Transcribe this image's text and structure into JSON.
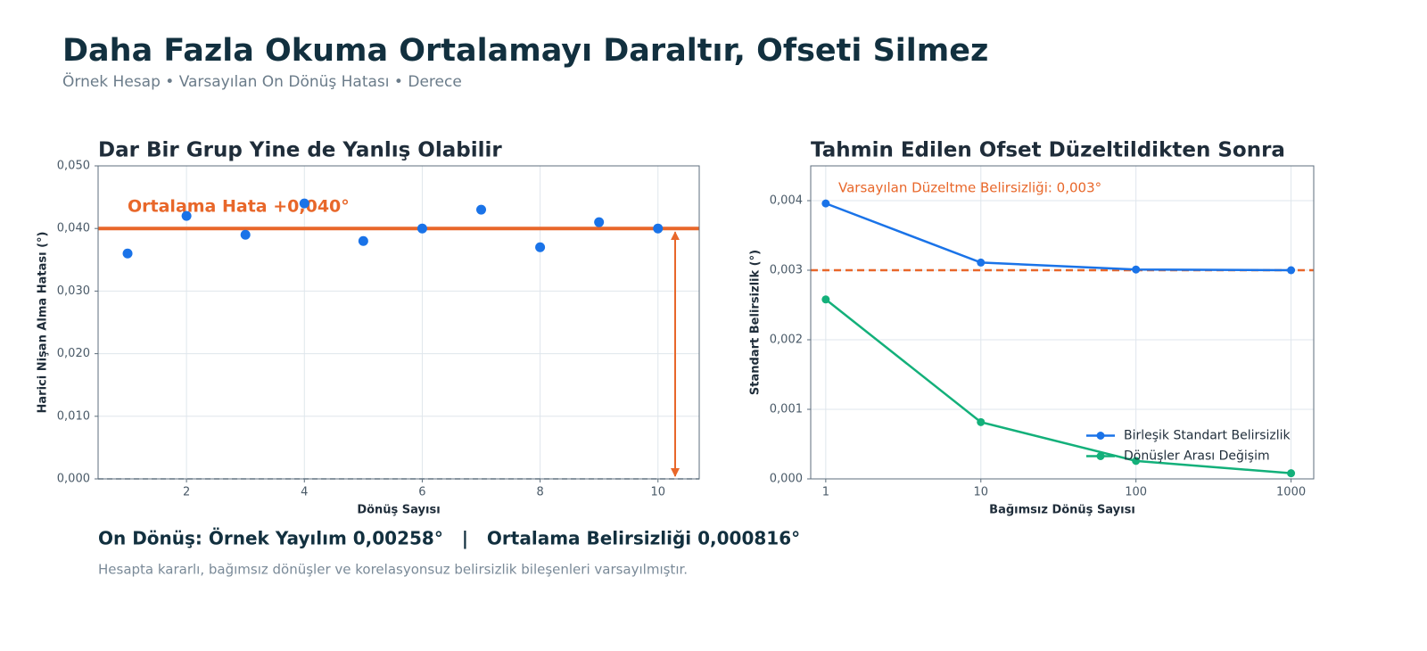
{
  "header": {
    "title": "Daha Fazla Okuma Ortalamayı Daraltır, Ofseti Silmez",
    "subtitle": "Örnek Hesap • Varsayılan On Dönüş Hatası • Derece"
  },
  "chart_data": [
    {
      "type": "scatter",
      "title": "Dar Bir Grup Yine de Yanlış Olabilir",
      "x_label": "Dönüş Sayısı",
      "y_label": "Harici Nişan Alma Hatası (°)",
      "x": [
        1,
        2,
        3,
        4,
        5,
        6,
        7,
        8,
        9,
        10
      ],
      "series": [
        {
          "name": "Dönüşler",
          "color": "#1a73e8",
          "values": [
            0.036,
            0.042,
            0.039,
            0.044,
            0.038,
            0.04,
            0.043,
            0.037,
            0.041,
            0.04
          ]
        }
      ],
      "xlim": [
        0.5,
        10.7
      ],
      "xticks": [
        2,
        4,
        6,
        8,
        10
      ],
      "ylim": [
        0,
        0.05
      ],
      "yticks": [
        {
          "value": 0,
          "label": "0,000"
        },
        {
          "value": 0.01,
          "label": "0,010"
        },
        {
          "value": 0.02,
          "label": "0,020"
        },
        {
          "value": 0.03,
          "label": "0,030"
        },
        {
          "value": 0.04,
          "label": "0,040"
        },
        {
          "value": 0.05,
          "label": "0,050"
        }
      ],
      "grid": true,
      "legend": "none",
      "baseline": 0,
      "reference_line": {
        "value": 0.04,
        "label": "Ortalama Hata +0,040°",
        "color": "#e8672a",
        "style": "solid"
      },
      "offset_arrow": true
    },
    {
      "type": "line",
      "title": "Tahmin Edilen Ofset Düzeltildikten Sonra",
      "x_label": "Bağımsız Dönüş Sayısı",
      "y_label": "Standart Belirsizlik (°)",
      "x": [
        1,
        10,
        100,
        1000
      ],
      "series": [
        {
          "name": "Birleşik Standart Belirsizlik",
          "color": "#1a73e8",
          "values": [
            0.00396,
            0.00311,
            0.00301,
            0.003
          ]
        },
        {
          "name": "Dönüşler Arası Değişim",
          "color": "#13b07a",
          "values": [
            0.00258,
            0.000816,
            0.000258,
            8.16e-05
          ]
        }
      ],
      "x_scale": "log",
      "xlim": [
        0.8,
        1400
      ],
      "xticks": [
        1,
        10,
        100,
        1000
      ],
      "ylim": [
        0,
        0.0045
      ],
      "yticks": [
        {
          "value": 0,
          "label": "0,000"
        },
        {
          "value": 0.001,
          "label": "0,001"
        },
        {
          "value": 0.002,
          "label": "0,002"
        },
        {
          "value": 0.003,
          "label": "0,003"
        },
        {
          "value": 0.004,
          "label": "0,004"
        }
      ],
      "grid": true,
      "legend": "lower right",
      "reference_line": {
        "value": 0.003,
        "label": "Varsayılan Düzeltme Belirsizliği: 0,003°",
        "color": "#e8672a",
        "style": "dashed"
      }
    }
  ],
  "footer": {
    "summary": "On Dönüş: Örnek Yayılım 0,00258°   |   Ortalama Belirsizliği 0,000816°",
    "note": "Hesapta kararlı, bağımsız dönüşler ve korelasyonsuz belirsizlik bileşenleri varsayılmıştır."
  }
}
